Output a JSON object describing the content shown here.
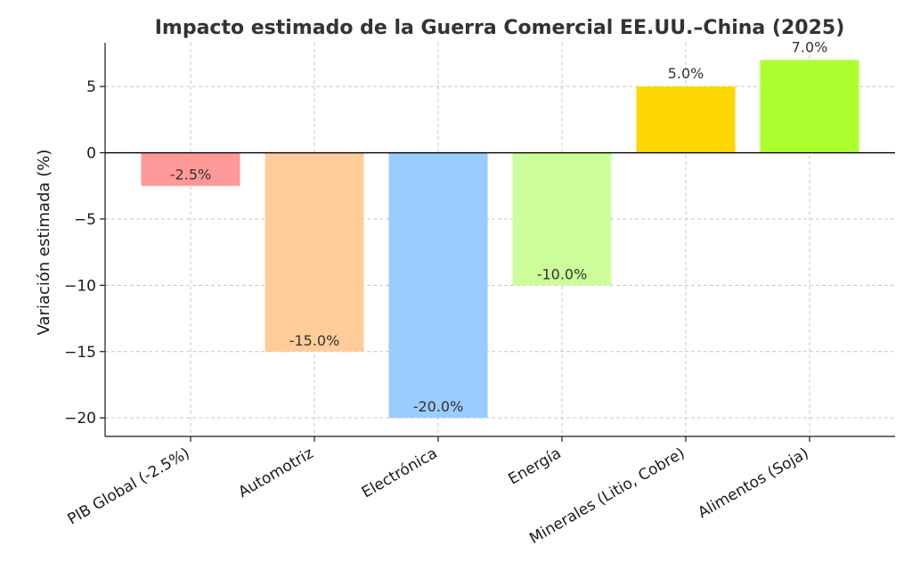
{
  "chart_data": {
    "type": "bar",
    "title": "Impacto estimado de la Guerra Comercial EE.UU.–China (2025)",
    "xlabel": "",
    "ylabel": "Variación estimada (%)",
    "ylim": [
      -21.4,
      8.3
    ],
    "yticks": [
      5,
      0,
      -5,
      -10,
      -15,
      -20
    ],
    "ytick_labels": [
      "5",
      "0",
      "−5",
      "−10",
      "−15",
      "−20"
    ],
    "grid": true,
    "categories": [
      "PIB Global (-2.5%)",
      "Automotriz",
      "Electrónica",
      "Energía",
      "Minerales (Litio, Cobre)",
      "Alimentos (Soja)"
    ],
    "values": [
      -2.5,
      -15.0,
      -20.0,
      -10.0,
      5.0,
      7.0
    ],
    "data_labels": [
      "-2.5%",
      "-15.0%",
      "-20.0%",
      "-10.0%",
      "5.0%",
      "7.0%"
    ],
    "colors": [
      "#ff9999",
      "#ffcc99",
      "#99ccff",
      "#ccff99",
      "#ffd700",
      "#adff2f"
    ]
  }
}
